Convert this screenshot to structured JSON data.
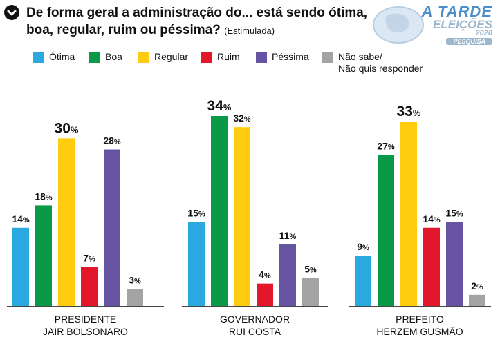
{
  "header": {
    "title_line1": "De forma geral a administração do... está sendo ótima,",
    "title_line2": "boa, regular, ruim ou péssima?",
    "subtitle": "(Estimulada)"
  },
  "logo": {
    "line1": "A TARDE",
    "line2": "ELEIÇÕES",
    "line3": "2020",
    "line4": "PESQUISA"
  },
  "colors": {
    "otima": "#29a9e0",
    "boa": "#0a9a47",
    "regular": "#ffcc0f",
    "ruim": "#e3172b",
    "pessima": "#6654a3",
    "nao_sabe": "#a3a3a3"
  },
  "legend": [
    {
      "key": "otima",
      "label": "Ótima"
    },
    {
      "key": "boa",
      "label": "Boa"
    },
    {
      "key": "regular",
      "label": "Regular"
    },
    {
      "key": "ruim",
      "label": "Ruim"
    },
    {
      "key": "pessima",
      "label": "Péssima"
    },
    {
      "key": "nao_sabe",
      "label": "Não sabe/",
      "label2": "Não quis responder"
    }
  ],
  "chart_data": {
    "type": "bar",
    "title": "De forma geral a administração do... está sendo ótima, boa, regular, ruim ou péssima? (Estimulada)",
    "value_suffix": "%",
    "series_names": [
      "Ótima",
      "Boa",
      "Regular",
      "Ruim",
      "Péssima",
      "Não sabe/Não quis responder"
    ],
    "groups": [
      {
        "label_line1": "PRESIDENTE",
        "label_line2": "JAIR BOLSONARO",
        "values": [
          14,
          18,
          30,
          7,
          28,
          3
        ]
      },
      {
        "label_line1": "GOVERNADOR",
        "label_line2": "RUI COSTA",
        "values": [
          15,
          34,
          32,
          4,
          11,
          5
        ]
      },
      {
        "label_line1": "PREFEITO",
        "label_line2": "HERZEM GUSMÃO",
        "values": [
          9,
          27,
          33,
          14,
          15,
          2
        ]
      }
    ],
    "ylim": [
      0,
      34
    ]
  }
}
